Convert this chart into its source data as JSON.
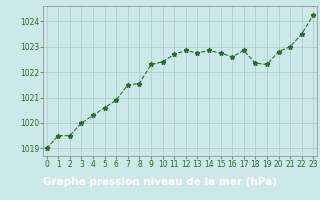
{
  "x": [
    0,
    1,
    2,
    3,
    4,
    5,
    6,
    7,
    8,
    9,
    10,
    11,
    12,
    13,
    14,
    15,
    16,
    17,
    18,
    19,
    20,
    21,
    22,
    23
  ],
  "y": [
    1019.0,
    1019.5,
    1019.5,
    1020.0,
    1020.3,
    1020.6,
    1020.9,
    1021.5,
    1021.55,
    1022.3,
    1022.4,
    1022.7,
    1022.85,
    1022.75,
    1022.85,
    1022.75,
    1022.6,
    1022.85,
    1022.35,
    1022.3,
    1022.8,
    1023.0,
    1023.5,
    1024.25
  ],
  "line_color": "#2d6a2d",
  "marker": "*",
  "bg_color": "#cce8e8",
  "label_bg_color": "#2d6a2d",
  "label_text_color": "#ffffff",
  "grid_color": "#b0c8c8",
  "xlabel": "Graphe pression niveau de la mer (hPa)",
  "ylim": [
    1018.7,
    1024.6
  ],
  "xlim": [
    -0.3,
    23.3
  ],
  "yticks": [
    1019,
    1020,
    1021,
    1022,
    1023,
    1024
  ],
  "xticks": [
    0,
    1,
    2,
    3,
    4,
    5,
    6,
    7,
    8,
    9,
    10,
    11,
    12,
    13,
    14,
    15,
    16,
    17,
    18,
    19,
    20,
    21,
    22,
    23
  ],
  "tick_label_size": 5.5,
  "xlabel_size": 7.5,
  "linewidth": 0.8,
  "markersize": 3.5
}
